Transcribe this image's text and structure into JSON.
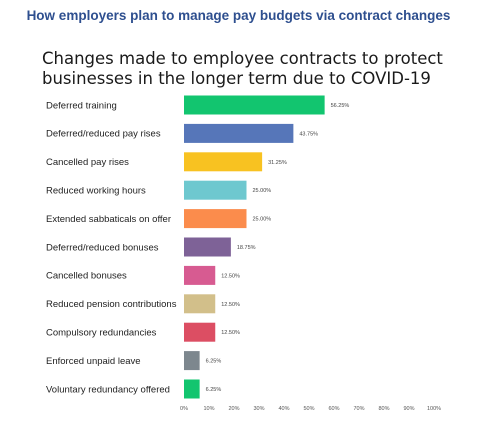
{
  "header": "How employers plan to manage pay budgets via contract changes",
  "chart_data": {
    "type": "bar",
    "orientation": "horizontal",
    "title_lines": [
      "Changes made to employee contracts to protect",
      "businesses in the longer term due to COVID-19"
    ],
    "categories": [
      "Deferred training",
      "Deferred/reduced pay rises",
      "Cancelled pay rises",
      "Reduced working hours",
      "Extended sabbaticals on offer",
      "Deferred/reduced bonuses",
      "Cancelled bonuses",
      "Reduced pension contributions",
      "Compulsory redundancies",
      "Enforced unpaid leave",
      "Voluntary redundancy offered"
    ],
    "values": [
      56.25,
      43.75,
      31.25,
      25.0,
      25.0,
      18.75,
      12.5,
      12.5,
      12.5,
      6.25,
      6.25
    ],
    "value_labels": [
      "56.25%",
      "43.75%",
      "31.25%",
      "25.00%",
      "25.00%",
      "18.75%",
      "12.50%",
      "12.50%",
      "12.50%",
      "6.25%",
      "6.25%"
    ],
    "colors": [
      "#12c56f",
      "#5676b9",
      "#f8c221",
      "#6ec8cf",
      "#fb8c4c",
      "#7e6297",
      "#d75b91",
      "#d2bf8a",
      "#dc4e63",
      "#7d878e",
      "#12c56f"
    ],
    "xlim": [
      0,
      100
    ],
    "x_ticks": [
      "0%",
      "10%",
      "20%",
      "30%",
      "40%",
      "50%",
      "60%",
      "70%",
      "80%",
      "90%",
      "100%"
    ],
    "grid": false,
    "legend": "none"
  }
}
